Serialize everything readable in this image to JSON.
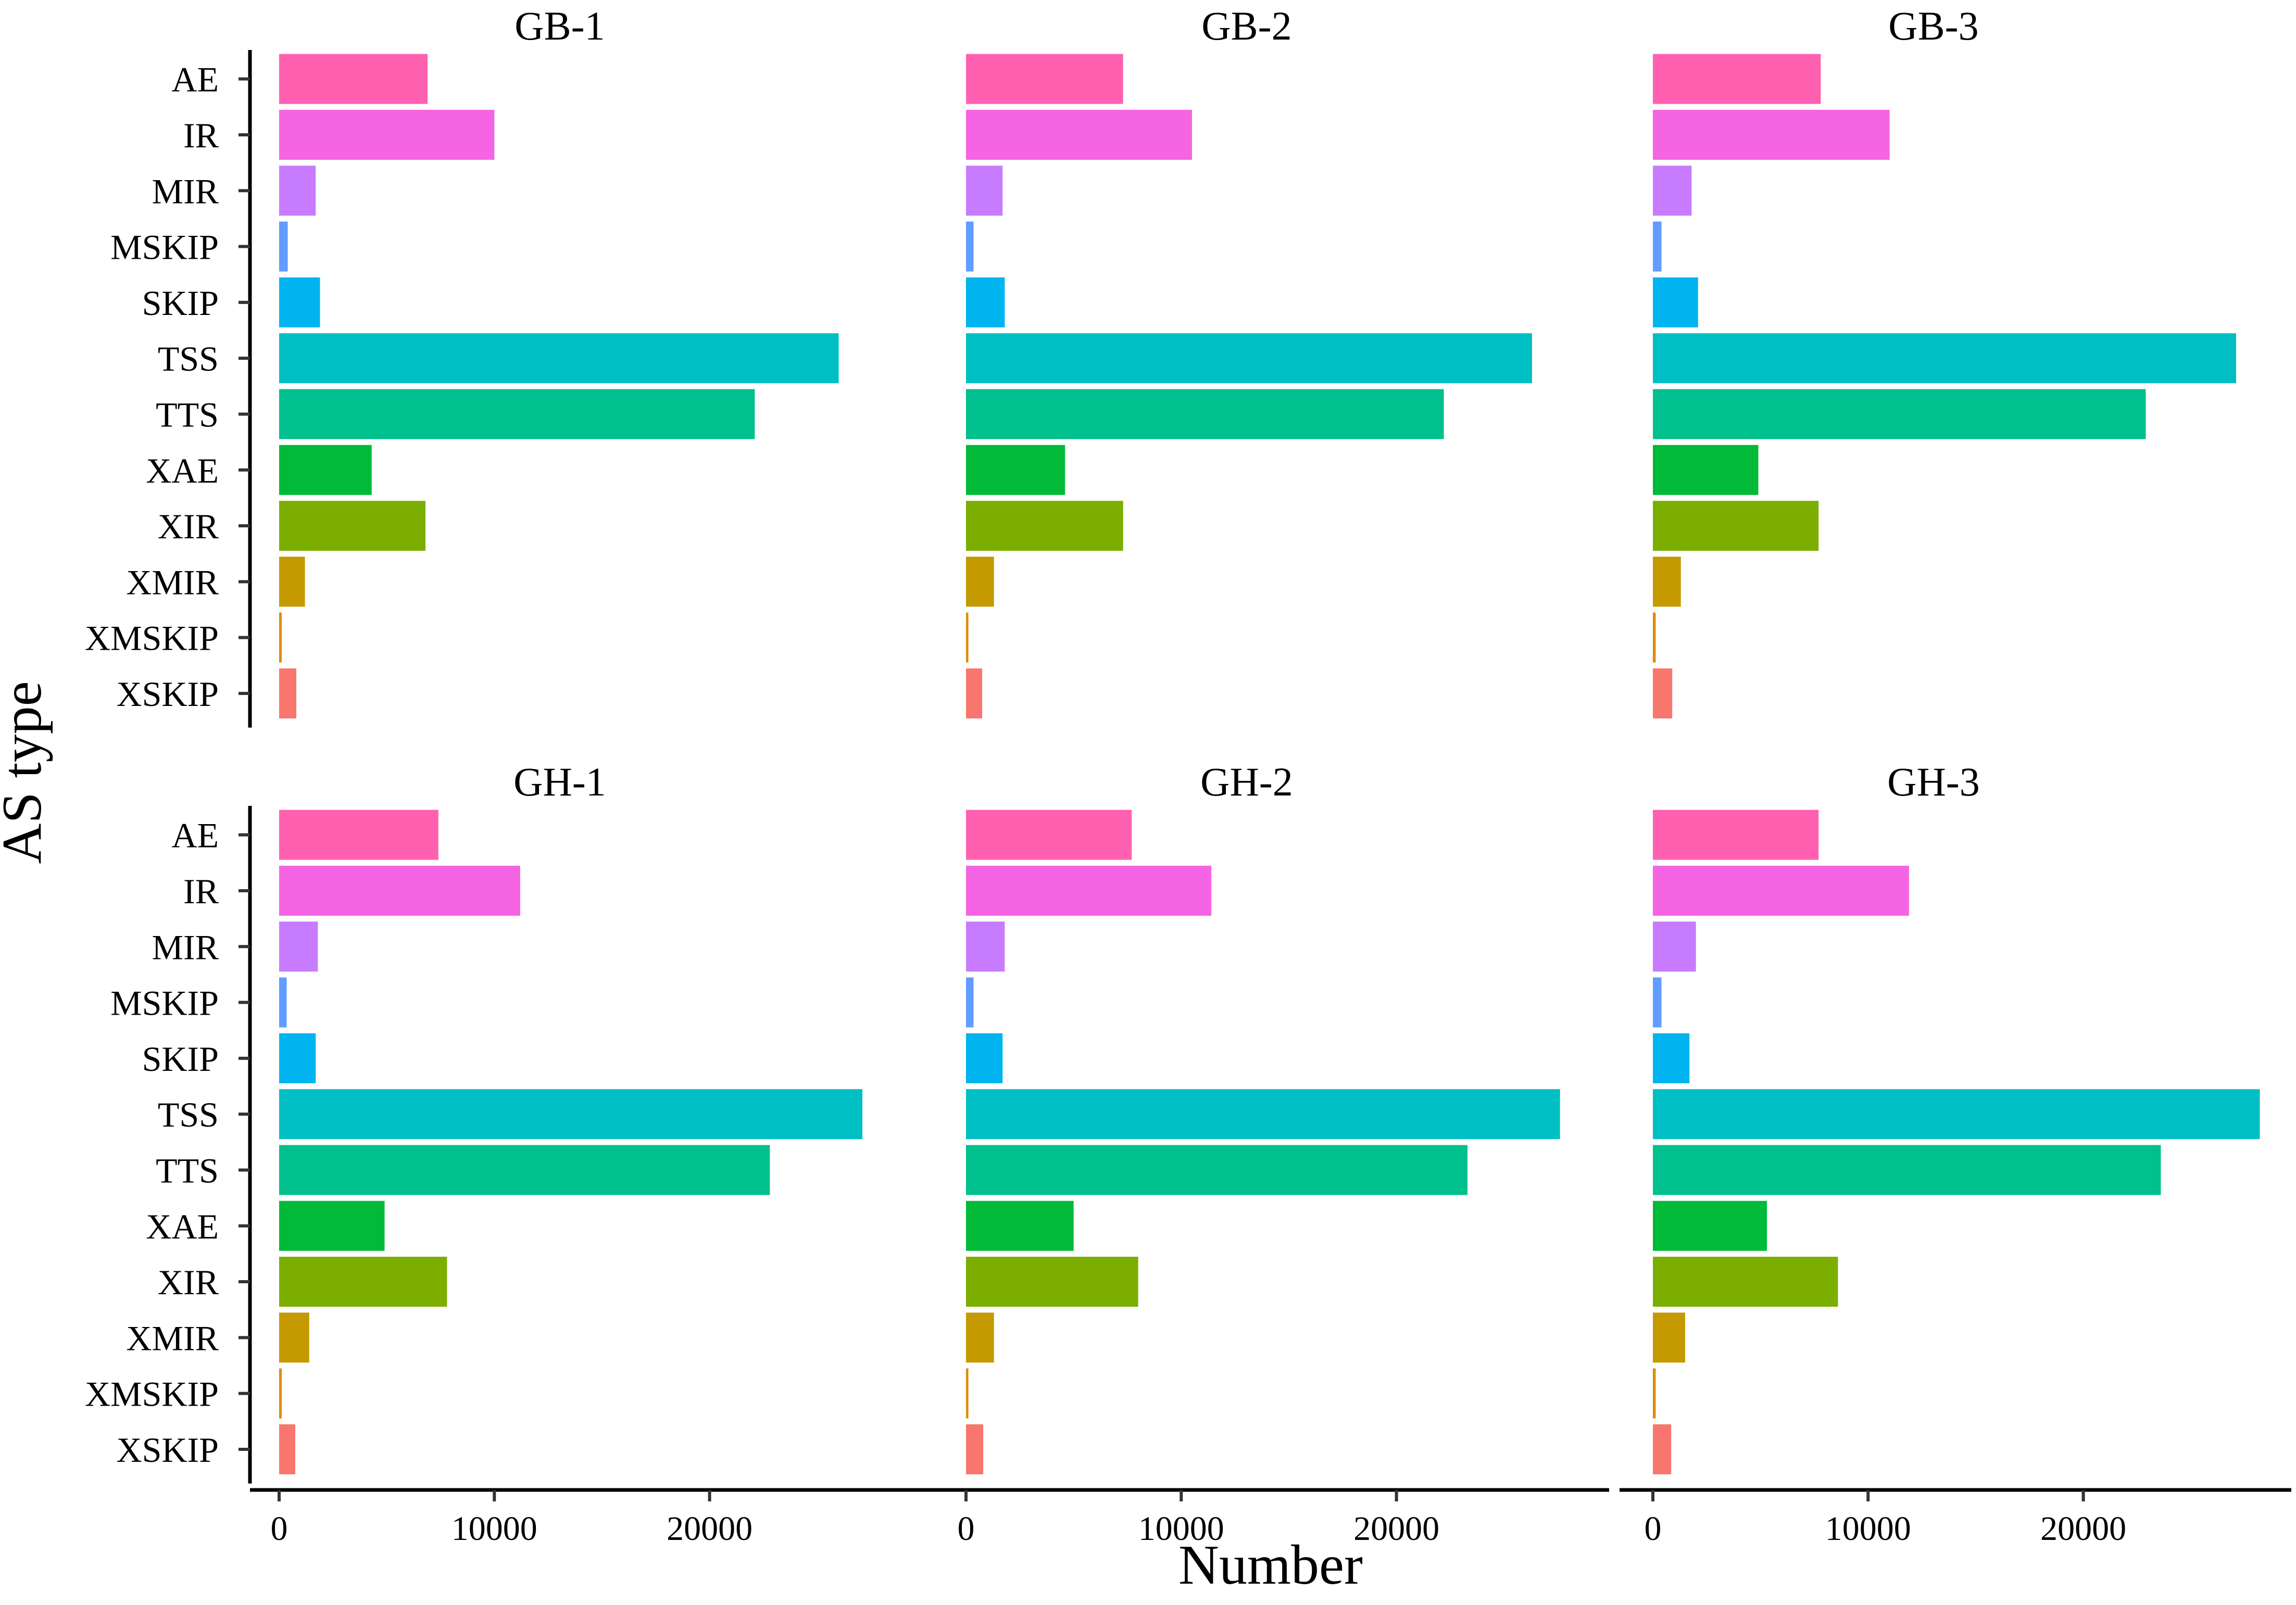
{
  "chart_data": {
    "type": "bar",
    "orientation": "horizontal",
    "xlabel": "Number",
    "ylabel": "AS type",
    "xlim": [
      0,
      28500
    ],
    "x_ticks": [
      0,
      10000,
      20000
    ],
    "x_tick_labels": [
      "0",
      "10000",
      "20000"
    ],
    "grid": false,
    "legend": "none",
    "categories": [
      "AE",
      "IR",
      "MIR",
      "MSKIP",
      "SKIP",
      "TSS",
      "TTS",
      "XAE",
      "XIR",
      "XMIR",
      "XMSKIP",
      "XSKIP"
    ],
    "category_colors": [
      "#FF61B0",
      "#F564E3",
      "#C77CFF",
      "#619CFF",
      "#00B4F0",
      "#00BFC4",
      "#00C08D",
      "#00BA38",
      "#7CAE00",
      "#C49A00",
      "#DE8C00",
      "#F8766D"
    ],
    "panels": [
      {
        "title": "GB-1",
        "values": [
          6900,
          10000,
          1700,
          400,
          1900,
          26000,
          22100,
          4300,
          6800,
          1200,
          120,
          800
        ]
      },
      {
        "title": "GB-2",
        "values": [
          7300,
          10500,
          1700,
          350,
          1800,
          26300,
          22200,
          4600,
          7300,
          1300,
          110,
          750
        ]
      },
      {
        "title": "GB-3",
        "values": [
          7800,
          11000,
          1800,
          400,
          2100,
          27100,
          22900,
          4900,
          7700,
          1300,
          130,
          900
        ]
      },
      {
        "title": "GH-1",
        "values": [
          7400,
          11200,
          1800,
          350,
          1700,
          27100,
          22800,
          4900,
          7800,
          1400,
          120,
          750
        ]
      },
      {
        "title": "GH-2",
        "values": [
          7700,
          11400,
          1800,
          350,
          1700,
          27600,
          23300,
          5000,
          8000,
          1300,
          110,
          800
        ]
      },
      {
        "title": "GH-3",
        "values": [
          7700,
          11900,
          2000,
          400,
          1700,
          28200,
          23600,
          5300,
          8600,
          1500,
          130,
          850
        ]
      }
    ]
  }
}
